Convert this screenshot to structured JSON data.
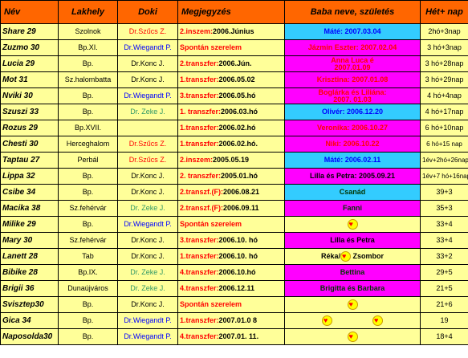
{
  "headers": {
    "nev": "Név",
    "lakhely": "Lakhely",
    "doki": "Doki",
    "megjegyzes": "Megjegyzés",
    "baba": "Baba neve, születés",
    "het": "Hét+ nap"
  },
  "rows": [
    {
      "nev": "Share 29",
      "lakhely": "Szolnok",
      "doki": "Dr.Szűcs Z.",
      "doki_color": "red",
      "meg_a": "2.inszem:",
      "meg_b": "2006.Június",
      "meg_a_color": "red",
      "baba": "Máté: 2007.03.04",
      "baba_bg": "cyan",
      "baba_color": "blue",
      "het": "2hó+3nap"
    },
    {
      "nev": "Zuzmo 30",
      "lakhely": "Bp.XI.",
      "doki": "Dr.Wiegandt P.",
      "doki_color": "blue",
      "meg_a": "Spontán szerelem",
      "meg_b": "",
      "meg_a_color": "red",
      "baba": "Jázmin Eszter: 2007.02.04",
      "baba_bg": "mag",
      "baba_color": "red",
      "het": "3 hó+3nap"
    },
    {
      "nev": "Lucia 29",
      "lakhely": "Bp.",
      "doki": "Dr.Konc J.",
      "doki_color": "black",
      "meg_a": "2.transzfer:",
      "meg_b": "2006.Jún.",
      "meg_a_color": "red",
      "baba_l1": "Anna Luca é",
      "baba_l2": "2007.01.09",
      "baba_bg": "mag",
      "baba_color": "red",
      "het": "3 hó+28nap"
    },
    {
      "nev": "Mot 31",
      "lakhely": "Sz.halombatta",
      "doki": "Dr.Konc J.",
      "doki_color": "black",
      "meg_a": "1.transzfer:",
      "meg_b": "2006.05.02",
      "meg_a_color": "red",
      "baba": "Krisztina: 2007.01.08",
      "baba_bg": "mag",
      "baba_color": "red",
      "het": "3 hó+29nap"
    },
    {
      "nev": "Nviki 30",
      "lakhely": "Bp.",
      "doki": "Dr.Wiegandt P.",
      "doki_color": "blue",
      "meg_a": "3.transzfer:",
      "meg_b": "2006.05.hó",
      "meg_a_color": "red",
      "baba_l1": "Boglárka és Liliána:",
      "baba_l2": "2007. 01.03",
      "baba_bg": "mag",
      "baba_color": "red",
      "het": "4 hó+4nap"
    },
    {
      "nev": "Szuszi 33",
      "lakhely": "Bp.",
      "doki": "Dr. Zeke J.",
      "doki_color": "green",
      "meg_a": "1. transzfer:",
      "meg_b": "2006.03.hó",
      "meg_a_color": "red",
      "baba": "Olivér: 2006.12.20",
      "baba_bg": "cyan",
      "baba_color": "blue",
      "het": "4 hó+17nap"
    },
    {
      "nev": "Rozus 29",
      "lakhely": "Bp.XVII.",
      "doki": "",
      "doki_color": "black",
      "meg_a": "1.transzfer:",
      "meg_b": "2006.02.hó",
      "meg_a_color": "red",
      "baba": "Veronika: 2006.10.27",
      "baba_bg": "mag",
      "baba_color": "red",
      "het": "6 hó+10nap"
    },
    {
      "nev": "Chesti 30",
      "lakhely": "Herceghalom",
      "doki": "Dr.Szűcs Z.",
      "doki_color": "red",
      "meg_a": "1.transzfer:",
      "meg_b": "2006.02.hó.",
      "meg_a_color": "red",
      "baba": "Niki: 2006.10.22",
      "baba_bg": "mag",
      "baba_color": "red",
      "het": "6 hó+15 nap"
    },
    {
      "nev": "Taptau 27",
      "lakhely": "Perbál",
      "doki": "Dr.Szűcs Z.",
      "doki_color": "red",
      "meg_a": "2.inszem:",
      "meg_b": "2005.05.19",
      "meg_a_color": "red",
      "baba": "Máté: 2006.02.11",
      "baba_bg": "cyan",
      "baba_color": "blue",
      "het": "1év+2hó+26nap"
    },
    {
      "nev": "Lippa 32",
      "lakhely": "Bp.",
      "doki": "Dr.Konc J.",
      "doki_color": "black",
      "meg_a": "2. transzfer:",
      "meg_b": "2005.01.hó",
      "meg_a_color": "red",
      "baba": "Lilla és Petra: 2005.09.21",
      "baba_bg": "mag",
      "baba_color": "black",
      "het": "1év+7 hó+16nap"
    },
    {
      "nev": "Csibe 34",
      "lakhely": "Bp.",
      "doki": "Dr.Konc J.",
      "doki_color": "black",
      "meg_a": "2.transzf.(F):",
      "meg_b": "2006.08.21",
      "meg_a_color": "red",
      "baba": "Csanád",
      "baba_bg": "cyan",
      "baba_color": "green",
      "het": "39+3"
    },
    {
      "nev": "Macika 38",
      "lakhely": "Sz.fehérvár",
      "doki": "Dr. Zeke J.",
      "doki_color": "green",
      "meg_a": "2.transzf.(F):",
      "meg_b": "2006.09.11",
      "meg_a_color": "red",
      "baba": "Fanni",
      "baba_bg": "mag",
      "baba_color": "green",
      "het": "35+3"
    },
    {
      "nev": "Milike 29",
      "lakhely": "Bp.",
      "doki": "Dr.Wiegandt P.",
      "doki_color": "blue",
      "meg_a": "Spontán szerelem",
      "meg_b": "",
      "meg_a_color": "red",
      "baba": "",
      "baba_heart": true,
      "baba_bg": "yel",
      "baba_color": "black",
      "het": "33+4"
    },
    {
      "nev": "Mary 30",
      "lakhely": "Sz.fehérvár",
      "doki": "Dr.Konc J.",
      "doki_color": "black",
      "meg_a": "3.transzfer:",
      "meg_b": "2006.10. hó",
      "meg_a_color": "red",
      "baba": "Lilla és Petra",
      "baba_bg": "mag",
      "baba_color": "black",
      "het": "33+4"
    },
    {
      "nev": "Lanett 28",
      "lakhely": "Tab",
      "doki": "Dr.Konc J.",
      "doki_color": "black",
      "meg_a": "1.transzfer:",
      "meg_b": "2006.10. hó",
      "meg_a_color": "red",
      "baba_reka": "Réka/",
      "baba_zsombor": "Zsombor",
      "baba_bg": "yel",
      "baba_color": "black",
      "het": "33+2"
    },
    {
      "nev": "Bibike 28",
      "lakhely": "Bp.IX.",
      "doki": "Dr. Zeke J.",
      "doki_color": "green",
      "meg_a": "4.transzfer:",
      "meg_b": "2006.10.hó",
      "meg_a_color": "red",
      "baba": "Bettina",
      "baba_bg": "mag",
      "baba_color": "green",
      "het": "29+5"
    },
    {
      "nev": "Brigii 36",
      "lakhely": "Dunaújváros",
      "doki": "Dr. Zeke J.",
      "doki_color": "green",
      "meg_a": "4.transzfer:",
      "meg_b": "2006.12.11",
      "meg_a_color": "red",
      "baba": "Brigitta és Barbara",
      "baba_bg": "mag",
      "baba_color": "green",
      "het": "21+5"
    },
    {
      "nev": "Svisztер30",
      "lakhely": "Bp.",
      "doki": "Dr.Konc J.",
      "doki_color": "black",
      "meg_a": "Spontán szerelem",
      "meg_b": "",
      "meg_a_color": "red",
      "baba": "",
      "baba_heart": true,
      "baba_bg": "yel",
      "baba_color": "black",
      "het": "21+6"
    },
    {
      "nev": "Gica  34",
      "lakhely": "Bp.",
      "doki": "Dr.Wiegandt P.",
      "doki_color": "blue",
      "meg_a": "1.transzfer:",
      "meg_b": "2007.01.0 8",
      "meg_a_color": "red",
      "baba": "",
      "baba_two_hearts": true,
      "baba_bg": "yel",
      "baba_color": "black",
      "het": "19"
    },
    {
      "nev": "Naposolda30",
      "lakhely": "Bp.",
      "doki": "Dr.Wiegandt P.",
      "doki_color": "blue",
      "meg_a": "4.transzfer:",
      "meg_b": "2007.01. 11.",
      "meg_a_color": "red",
      "baba": "",
      "baba_heart": true,
      "baba_bg": "yel",
      "baba_color": "black",
      "het": "18+4"
    }
  ]
}
